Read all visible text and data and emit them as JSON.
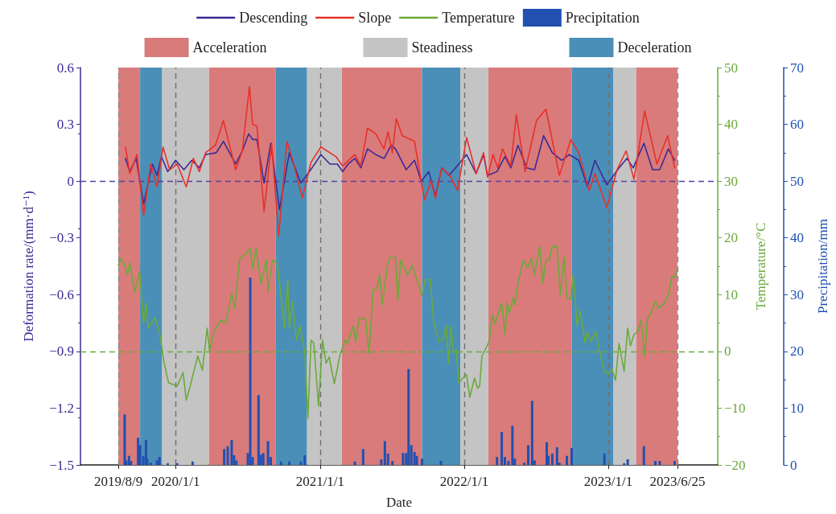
{
  "chart_data": {
    "type": "line",
    "xlabel": "Date",
    "ylabel": "Deformation rate/(mm·d⁻¹)",
    "y2label": "Temperature/°C",
    "y3label": "Precipitation/mm",
    "xlim": [
      "2019-05-05",
      "2023-10-05"
    ],
    "xticks": [
      {
        "value": "2019-08-09",
        "label": "2019/8/9"
      },
      {
        "value": "2020-01-01",
        "label": "2020/1/1"
      },
      {
        "value": "2021-01-01",
        "label": "2021/1/1"
      },
      {
        "value": "2022-01-01",
        "label": "2022/1/1"
      },
      {
        "value": "2023-01-01",
        "label": "2023/1/1"
      },
      {
        "value": "2023-06-25",
        "label": "2023/6/25"
      }
    ],
    "ylim": [
      -1.5,
      0.6
    ],
    "yticks": [
      {
        "value": -1.5,
        "label": "−1.5"
      },
      {
        "value": -1.2,
        "label": "−1.2"
      },
      {
        "value": -0.9,
        "label": "−0.9"
      },
      {
        "value": -0.6,
        "label": "−0.6"
      },
      {
        "value": -0.3,
        "label": "−0.3"
      },
      0,
      0.3,
      0.6
    ],
    "y2lim": [
      -20,
      50
    ],
    "y2ticks": [
      {
        "value": -20,
        "label": "−20"
      },
      {
        "value": -10,
        "label": "−10"
      },
      0,
      10,
      20,
      30,
      40,
      50
    ],
    "y3lim": [
      0,
      70
    ],
    "y3ticks": [
      0,
      10,
      20,
      30,
      40,
      50,
      60,
      70
    ],
    "legend": "top",
    "grid": false,
    "marker": "none",
    "line_style": "solid",
    "series": [
      {
        "name": "Descending",
        "color": "#3b2a96",
        "x": [
          "2019-08-27",
          "2019-09-07",
          "2019-09-23",
          "2019-10-12",
          "2019-11-03",
          "2019-11-15",
          "2019-11-26",
          "2019-12-12",
          "2020-01-01",
          "2020-01-22",
          "2020-02-11",
          "2020-03-01",
          "2020-03-17",
          "2020-04-13",
          "2020-05-01",
          "2020-06-01",
          "2020-06-18",
          "2020-07-04",
          "2020-07-14",
          "2020-07-25",
          "2020-08-12",
          "2020-08-29",
          "2020-09-20",
          "2020-10-15",
          "2020-11-13",
          "2020-12-05",
          "2021-01-03",
          "2021-01-26",
          "2021-02-14",
          "2021-02-27",
          "2021-03-13",
          "2021-03-30",
          "2021-04-14",
          "2021-05-01",
          "2021-05-22",
          "2021-06-12",
          "2021-06-30",
          "2021-07-11",
          "2021-08-07",
          "2021-08-28",
          "2021-09-14",
          "2021-10-03",
          "2021-10-20",
          "2021-11-05",
          "2021-11-24",
          "2022-01-07",
          "2022-01-31",
          "2022-02-19",
          "2022-03-01",
          "2022-03-25",
          "2022-04-14",
          "2022-04-29",
          "2022-05-17",
          "2022-06-08",
          "2022-06-28",
          "2022-07-21",
          "2022-08-12",
          "2022-09-05",
          "2022-09-24",
          "2022-10-18",
          "2022-11-09",
          "2022-11-28",
          "2022-12-28",
          "2023-01-28",
          "2023-02-17",
          "2023-03-05",
          "2023-04-01",
          "2023-04-23",
          "2023-05-11",
          "2023-06-02",
          "2023-06-18"
        ],
        "values": [
          0.12,
          0.05,
          0.12,
          -0.12,
          0.09,
          0.03,
          0.13,
          0.05,
          0.11,
          0.06,
          0.11,
          0.07,
          0.14,
          0.15,
          0.21,
          0.09,
          0.16,
          0.25,
          0.22,
          0.22,
          -0.01,
          0.2,
          -0.15,
          0.15,
          -0.01,
          0.05,
          0.14,
          0.09,
          0.09,
          0.05,
          0.09,
          0.12,
          0.07,
          0.17,
          0.14,
          0.12,
          0.19,
          0.17,
          0.06,
          0.11,
          0.0,
          0.05,
          -0.08,
          0.07,
          0.03,
          0.14,
          0.04,
          0.14,
          0.03,
          0.05,
          0.13,
          0.07,
          0.19,
          0.07,
          0.06,
          0.24,
          0.15,
          0.11,
          0.14,
          0.11,
          -0.03,
          0.11,
          -0.02,
          0.07,
          0.12,
          0.07,
          0.2,
          0.06,
          0.06,
          0.17,
          0.11
        ]
      },
      {
        "name": "Slope",
        "color": "#e8302a",
        "x": [
          "2019-08-27",
          "2019-09-07",
          "2019-09-25",
          "2019-10-12",
          "2019-10-30",
          "2019-11-15",
          "2019-11-30",
          "2019-12-17",
          "2020-01-05",
          "2020-01-28",
          "2020-02-15",
          "2020-03-01",
          "2020-03-17",
          "2020-04-11",
          "2020-05-01",
          "2020-06-01",
          "2020-06-18",
          "2020-07-06",
          "2020-07-14",
          "2020-07-25",
          "2020-08-12",
          "2020-08-31",
          "2020-09-18",
          "2020-10-09",
          "2020-10-25",
          "2020-11-17",
          "2020-12-09",
          "2021-01-03",
          "2021-02-10",
          "2021-02-27",
          "2021-03-30",
          "2021-04-14",
          "2021-05-01",
          "2021-05-22",
          "2021-06-12",
          "2021-06-22",
          "2021-07-03",
          "2021-07-13",
          "2021-07-28",
          "2021-08-28",
          "2021-09-22",
          "2021-10-09",
          "2021-10-20",
          "2021-11-05",
          "2021-11-26",
          "2021-12-15",
          "2022-01-07",
          "2022-01-31",
          "2022-02-19",
          "2022-03-01",
          "2022-03-15",
          "2022-03-27",
          "2022-04-08",
          "2022-04-29",
          "2022-05-13",
          "2022-06-04",
          "2022-07-03",
          "2022-07-27",
          "2022-08-30",
          "2022-09-28",
          "2022-10-18",
          "2022-11-13",
          "2022-11-28",
          "2022-12-28",
          "2023-01-23",
          "2023-02-15",
          "2023-03-07",
          "2023-04-03",
          "2023-05-04",
          "2023-05-31",
          "2023-06-18"
        ],
        "values": [
          0.18,
          0.04,
          0.14,
          -0.18,
          0.09,
          -0.03,
          0.18,
          0.06,
          0.09,
          -0.03,
          0.12,
          0.05,
          0.15,
          0.19,
          0.32,
          0.06,
          0.16,
          0.5,
          0.3,
          0.29,
          -0.16,
          0.2,
          -0.29,
          0.21,
          0.1,
          -0.09,
          0.1,
          0.18,
          0.13,
          0.08,
          0.14,
          0.08,
          0.28,
          0.25,
          0.17,
          0.26,
          0.15,
          0.33,
          0.24,
          0.21,
          -0.1,
          0.0,
          -0.09,
          0.07,
          0.03,
          -0.05,
          0.23,
          0.04,
          0.15,
          0.02,
          0.14,
          0.07,
          0.17,
          0.08,
          0.35,
          0.05,
          0.32,
          0.38,
          0.03,
          0.22,
          0.15,
          -0.05,
          0.04,
          -0.14,
          0.06,
          0.16,
          0.01,
          0.37,
          0.09,
          0.24,
          0.07
        ]
      },
      {
        "name": "Temperature",
        "axis": "y2",
        "color": "#6aaa3a",
        "x": [
          "2019-08-09",
          "2019-08-14",
          "2019-08-23",
          "2019-09-01",
          "2019-09-07",
          "2019-09-19",
          "2019-10-02",
          "2019-10-12",
          "2019-10-18",
          "2019-10-23",
          "2019-11-10",
          "2019-11-21",
          "2019-12-03",
          "2019-12-14",
          "2020-01-05",
          "2020-01-20",
          "2020-01-28",
          "2020-02-07",
          "2020-02-26",
          "2020-03-09",
          "2020-03-21",
          "2020-03-27",
          "2020-04-07",
          "2020-04-25",
          "2020-05-07",
          "2020-05-22",
          "2020-05-30",
          "2020-06-11",
          "2020-06-28",
          "2020-07-08",
          "2020-07-14",
          "2020-07-23",
          "2020-08-04",
          "2020-08-18",
          "2020-08-22",
          "2020-09-02",
          "2020-09-14",
          "2020-10-03",
          "2020-10-11",
          "2020-10-15",
          "2020-10-23",
          "2020-11-02",
          "2020-11-11",
          "2020-11-23",
          "2020-12-01",
          "2020-12-09",
          "2020-12-16",
          "2020-12-28",
          "2021-01-07",
          "2021-01-16",
          "2021-01-24",
          "2021-02-06",
          "2021-02-20",
          "2021-03-05",
          "2021-03-11",
          "2021-03-26",
          "2021-04-01",
          "2021-04-10",
          "2021-04-26",
          "2021-05-05",
          "2021-05-15",
          "2021-05-24",
          "2021-06-01",
          "2021-06-07",
          "2021-06-20",
          "2021-06-26",
          "2021-07-11",
          "2021-07-17",
          "2021-07-24",
          "2021-08-11",
          "2021-08-22",
          "2021-09-03",
          "2021-09-16",
          "2021-09-24",
          "2021-10-07",
          "2021-10-15",
          "2021-10-28",
          "2021-11-08",
          "2021-11-16",
          "2021-11-22",
          "2021-11-28",
          "2021-12-05",
          "2021-12-11",
          "2021-12-19",
          "2021-12-28",
          "2022-01-07",
          "2022-01-15",
          "2022-01-27",
          "2022-02-04",
          "2022-02-09",
          "2022-02-15",
          "2022-03-05",
          "2022-03-13",
          "2022-03-19",
          "2022-04-06",
          "2022-04-14",
          "2022-04-20",
          "2022-04-25",
          "2022-05-05",
          "2022-05-09",
          "2022-05-17",
          "2022-05-31",
          "2022-06-10",
          "2022-06-20",
          "2022-06-28",
          "2022-07-11",
          "2022-07-19",
          "2022-07-27",
          "2022-08-04",
          "2022-08-12",
          "2022-08-18",
          "2022-08-24",
          "2022-09-01",
          "2022-09-11",
          "2022-09-18",
          "2022-09-28",
          "2022-10-04",
          "2022-10-14",
          "2022-10-22",
          "2022-11-03",
          "2022-11-09",
          "2022-11-18",
          "2022-11-30",
          "2022-12-10",
          "2022-12-22",
          "2023-01-01",
          "2023-01-10",
          "2023-01-19",
          "2023-01-28",
          "2023-02-10",
          "2023-02-19",
          "2023-02-26",
          "2023-03-07",
          "2023-03-16",
          "2023-03-25",
          "2023-04-03",
          "2023-04-10",
          "2023-04-19",
          "2023-04-30",
          "2023-05-09",
          "2023-05-22",
          "2023-06-02",
          "2023-06-11",
          "2023-06-18",
          "2023-06-25"
        ],
        "values": [
          15.2,
          16.4,
          15.6,
          13.5,
          15.6,
          10.5,
          14.0,
          5.0,
          8.5,
          4.1,
          5.9,
          3.4,
          -2.1,
          -5.5,
          -6.1,
          -3.7,
          -8.6,
          -6.1,
          -0.8,
          -3.3,
          4.1,
          0.0,
          3.5,
          5.5,
          5.0,
          10.2,
          7.6,
          16.3,
          17.3,
          18.1,
          14.6,
          18.1,
          12.0,
          16.1,
          10.5,
          16.1,
          15.6,
          4.1,
          12.6,
          4.1,
          8.8,
          2.0,
          4.5,
          0.0,
          -11.8,
          2.0,
          1.4,
          -9.6,
          2.0,
          -2.1,
          -1.0,
          -5.7,
          -0.7,
          2.0,
          1.4,
          4.5,
          1.7,
          5.8,
          5.7,
          -0.4,
          10.9,
          11.0,
          13.5,
          8.2,
          14.7,
          16.6,
          16.6,
          9.1,
          16.1,
          13.5,
          15.2,
          12.6,
          9.9,
          12.6,
          12.6,
          5.5,
          1.7,
          2.1,
          4.5,
          -2.1,
          4.5,
          -0.4,
          0.4,
          -5.5,
          -4.7,
          -4.1,
          -8.1,
          -4.7,
          -6.5,
          -6.1,
          -0.8,
          1.7,
          6.4,
          4.8,
          8.5,
          3.0,
          8.5,
          6.7,
          9.5,
          8.1,
          11.9,
          16.1,
          14.7,
          16.4,
          13.5,
          18.6,
          12.0,
          16.1,
          16.1,
          18.6,
          18.3,
          18.6,
          9.9,
          16.6,
          9.5,
          9.1,
          13.5,
          4.5,
          7.1,
          1.4,
          3.4,
          1.7,
          3.5,
          0.0,
          -3.5,
          -4.0,
          -3.1,
          -5.1,
          1.4,
          -3.5,
          4.1,
          1.0,
          3.0,
          3.4,
          5.5,
          -0.8,
          5.7,
          6.9,
          8.8,
          7.6,
          8.4,
          9.9,
          13.3,
          13.0,
          14.4
        ]
      },
      {
        "name": "Precipitation",
        "type": "bar",
        "axis": "y3",
        "color": "#2150b0",
        "x": [
          "2019-08-25",
          "2019-08-29",
          "2019-09-05",
          "2019-09-10",
          "2019-09-28",
          "2019-10-03",
          "2019-10-11",
          "2019-10-18",
          "2019-10-21",
          "2019-10-30",
          "2019-11-15",
          "2019-11-21",
          "2019-12-12",
          "2020-01-05",
          "2020-02-13",
          "2020-05-03",
          "2020-05-12",
          "2020-05-22",
          "2020-05-28",
          "2020-06-03",
          "2020-07-02",
          "2020-07-08",
          "2020-07-14",
          "2020-07-29",
          "2020-08-04",
          "2020-08-10",
          "2020-08-22",
          "2020-08-29",
          "2020-09-24",
          "2020-10-15",
          "2020-11-13",
          "2020-11-23",
          "2021-03-30",
          "2021-04-20",
          "2021-06-05",
          "2021-06-14",
          "2021-06-22",
          "2021-07-03",
          "2021-07-30",
          "2021-08-07",
          "2021-08-13",
          "2021-08-20",
          "2021-08-28",
          "2021-09-03",
          "2021-09-16",
          "2021-11-03",
          "2022-03-25",
          "2022-04-06",
          "2022-04-14",
          "2022-04-23",
          "2022-05-03",
          "2022-05-09",
          "2022-06-02",
          "2022-06-12",
          "2022-06-22",
          "2022-06-28",
          "2022-07-29",
          "2022-08-02",
          "2022-08-12",
          "2022-08-24",
          "2022-08-30",
          "2022-09-18",
          "2022-09-30",
          "2022-12-22",
          "2023-02-10",
          "2023-02-19",
          "2023-04-01",
          "2023-04-30",
          "2023-05-11",
          "2023-06-18"
        ],
        "values": [
          8.9,
          0.8,
          1.6,
          0.7,
          4.8,
          3.5,
          1.6,
          4.4,
          1.1,
          0.4,
          0.8,
          1.4,
          0.3,
          0.3,
          0.6,
          2.8,
          3.3,
          4.4,
          1.7,
          0.8,
          2.1,
          33.0,
          1.4,
          12.3,
          1.8,
          2.1,
          4.2,
          1.4,
          0.6,
          0.6,
          0.6,
          1.7,
          0.6,
          2.8,
          1.0,
          4.2,
          2.0,
          0.7,
          2.1,
          2.1,
          16.9,
          3.5,
          2.3,
          1.6,
          1.1,
          0.7,
          1.4,
          5.8,
          1.4,
          0.7,
          6.9,
          1.1,
          0.4,
          3.5,
          11.3,
          0.8,
          4.0,
          1.6,
          2.0,
          3.1,
          0.4,
          1.6,
          3.0,
          2.0,
          0.3,
          1.0,
          3.3,
          0.7,
          0.7,
          0.7
        ]
      }
    ],
    "bands": [
      {
        "axis": "x",
        "from": "2019-08-09",
        "to": "2019-10-03",
        "label": "Acceleration",
        "color": "#d97b7b"
      },
      {
        "axis": "x",
        "from": "2019-10-03",
        "to": "2019-11-28",
        "label": null,
        "color": "#4a8fb8"
      },
      {
        "axis": "x",
        "from": "2019-11-28",
        "to": "2020-03-25",
        "label": "Steadiness",
        "color": "#c4c4c4"
      },
      {
        "axis": "x",
        "from": "2020-03-25",
        "to": "2020-09-10",
        "label": null,
        "color": "#d97b7b"
      },
      {
        "axis": "x",
        "from": "2020-09-10",
        "to": "2020-11-29",
        "label": "Deceleration",
        "color": "#4a8fb8"
      },
      {
        "axis": "x",
        "from": "2020-11-29",
        "to": "2021-02-25",
        "label": null,
        "color": "#c4c4c4"
      },
      {
        "axis": "x",
        "from": "2021-02-25",
        "to": "2021-09-16",
        "label": null,
        "color": "#d97b7b"
      },
      {
        "axis": "x",
        "from": "2021-09-16",
        "to": "2021-12-22",
        "label": null,
        "color": "#4a8fb8"
      },
      {
        "axis": "x",
        "from": "2021-12-22",
        "to": "2022-03-03",
        "label": null,
        "color": "#c4c4c4"
      },
      {
        "axis": "x",
        "from": "2022-03-03",
        "to": "2022-09-30",
        "label": null,
        "color": "#d97b7b"
      },
      {
        "axis": "x",
        "from": "2022-09-30",
        "to": "2023-01-14",
        "label": null,
        "color": "#4a8fb8"
      },
      {
        "axis": "x",
        "from": "2023-01-14",
        "to": "2023-03-12",
        "label": null,
        "color": "#c4c4c4"
      },
      {
        "axis": "x",
        "from": "2023-03-12",
        "to": "2023-06-25",
        "label": null,
        "color": "#d97b7b"
      }
    ],
    "ref_lines": [
      {
        "axis": "y",
        "value": 0,
        "label": null,
        "color": "#5a3fa0",
        "line_style": "dashed"
      },
      {
        "axis": "y2",
        "value": 0,
        "label": null,
        "color": "#6aaa3a",
        "line_style": "dashed"
      },
      {
        "axis": "x",
        "value": "2019-08-09",
        "label": null,
        "color": "#8c8c8c",
        "line_style": "dashed"
      },
      {
        "axis": "x",
        "value": "2020-01-01",
        "label": null,
        "color": "#707070",
        "line_style": "dashed"
      },
      {
        "axis": "x",
        "value": "2021-01-01",
        "label": null,
        "color": "#707070",
        "line_style": "dashed"
      },
      {
        "axis": "x",
        "value": "2022-01-01",
        "label": null,
        "color": "#707070",
        "line_style": "dashed"
      },
      {
        "axis": "x",
        "value": "2023-01-01",
        "label": null,
        "color": "#707070",
        "line_style": "dashed"
      },
      {
        "axis": "x",
        "value": "2023-06-25",
        "label": null,
        "color": "#8c8c8c",
        "line_style": "dashed"
      }
    ]
  }
}
